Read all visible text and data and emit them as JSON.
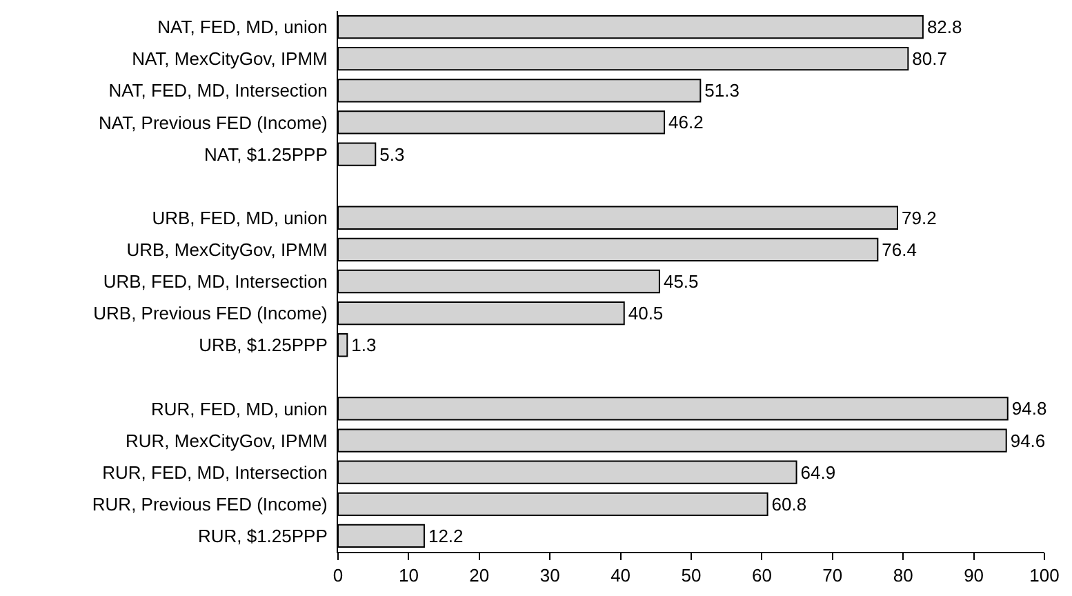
{
  "chart_data": {
    "type": "bar",
    "orientation": "horizontal",
    "categories": [
      "NAT, FED, MD, union",
      "NAT, MexCityGov, IPMM",
      "NAT, FED, MD, Intersection",
      "NAT, Previous FED (Income)",
      "NAT, $1.25PPP",
      null,
      "URB, FED, MD, union",
      "URB, MexCityGov, IPMM",
      "URB, FED, MD, Intersection",
      "URB, Previous FED (Income)",
      "URB, $1.25PPP",
      null,
      "RUR, FED, MD, union",
      "RUR, MexCityGov, IPMM",
      "RUR, FED, MD, Intersection",
      "RUR, Previous FED (Income)",
      "RUR, $1.25PPP"
    ],
    "values": [
      82.8,
      80.7,
      51.3,
      46.2,
      5.3,
      null,
      79.2,
      76.4,
      45.5,
      40.5,
      1.3,
      null,
      94.8,
      94.6,
      64.9,
      60.8,
      12.2
    ],
    "color": "#d3d3d3",
    "xlim": [
      0,
      100
    ],
    "xticks": [
      0,
      10,
      20,
      30,
      40,
      50,
      60,
      70,
      80,
      90,
      100
    ],
    "data_labels": true
  }
}
